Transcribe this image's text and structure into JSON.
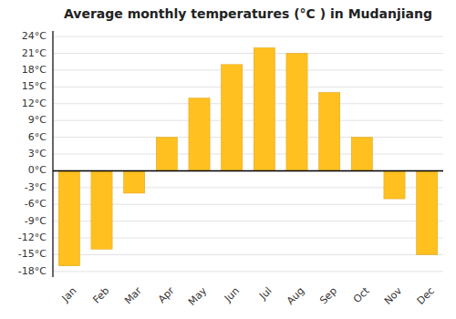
{
  "chart_data": {
    "type": "bar",
    "title": "Average monthly temperatures (°C ) in Mudanjiang",
    "categories": [
      "Jan",
      "Feb",
      "Mar",
      "Apr",
      "May",
      "Jun",
      "Jul",
      "Aug",
      "Sep",
      "Oct",
      "Nov",
      "Dec"
    ],
    "values": [
      -17,
      -14,
      -4,
      6,
      13,
      19,
      22,
      21,
      14,
      6,
      -5,
      -15
    ],
    "color": "#FFC020",
    "ylim": [
      -19,
      25
    ],
    "yticks": [
      {
        "value": -18,
        "label": "-18°C"
      },
      {
        "value": -15,
        "label": "-15°C"
      },
      {
        "value": -12,
        "label": "-12°C"
      },
      {
        "value": -9,
        "label": "-9°C"
      },
      {
        "value": -6,
        "label": "-6°C"
      },
      {
        "value": -3,
        "label": "-3°C"
      },
      {
        "value": 0,
        "label": "0°C"
      },
      {
        "value": 3,
        "label": "3°C"
      },
      {
        "value": 6,
        "label": "6°C"
      },
      {
        "value": 9,
        "label": "9°C"
      },
      {
        "value": 12,
        "label": "12°C"
      },
      {
        "value": 15,
        "label": "15°C"
      },
      {
        "value": 18,
        "label": "18°C"
      },
      {
        "value": 21,
        "label": "21°C"
      },
      {
        "value": 24,
        "label": "24°C"
      }
    ],
    "grid": true
  }
}
